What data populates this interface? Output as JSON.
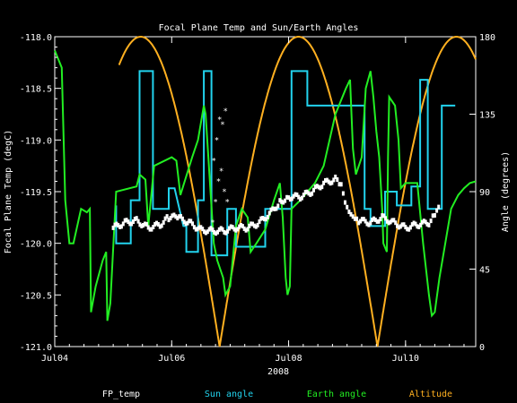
{
  "chart_data": {
    "type": "line",
    "title": "Focal Plane Temp and Sun/Earth Angles",
    "xlabel": "2008",
    "ylabel_left": "Focal Plane Temp (degC)",
    "ylabel_right": "Angle (degrees)",
    "ylim_left": [
      -121.0,
      -118.0
    ],
    "ylim_right": [
      0,
      180
    ],
    "xlim_days": [
      4.0,
      11.2
    ],
    "x_ticks": [
      {
        "day": 4,
        "label": "Jul04"
      },
      {
        "day": 6,
        "label": "Jul06"
      },
      {
        "day": 8,
        "label": "Jul08"
      },
      {
        "day": 10,
        "label": "Jul10"
      }
    ],
    "y_ticks_left": [
      "-118.0",
      "-118.5",
      "-119.0",
      "-119.5",
      "-120.0",
      "-120.5",
      "-121.0"
    ],
    "y_ticks_right": [
      "180",
      "135",
      "90",
      "45",
      "0"
    ],
    "legend": [
      "FP_temp",
      "Sun angle",
      "Earth angle",
      "Altitude"
    ],
    "colors": {
      "FP_temp": "#ffffff",
      "Sun angle": "#22d3ee",
      "Earth angle": "#22ee22",
      "Altitude": "#ffb020",
      "axes": "#ffffff",
      "background": "#000000"
    },
    "series": {
      "fp_temp": [
        [
          5.0,
          -119.85
        ],
        [
          5.2,
          -119.8
        ],
        [
          5.4,
          -119.78
        ],
        [
          5.6,
          -119.85
        ],
        [
          5.8,
          -119.82
        ],
        [
          5.95,
          -119.75
        ],
        [
          6.1,
          -119.75
        ],
        [
          6.3,
          -119.8
        ],
        [
          6.5,
          -119.87
        ],
        [
          6.7,
          -119.88
        ],
        [
          6.9,
          -119.88
        ],
        [
          7.1,
          -119.85
        ],
        [
          7.3,
          -119.85
        ],
        [
          7.5,
          -119.8
        ],
        [
          7.7,
          -119.7
        ],
        [
          7.85,
          -119.6
        ],
        [
          8.0,
          -119.55
        ],
        [
          8.2,
          -119.55
        ],
        [
          8.4,
          -119.5
        ],
        [
          8.6,
          -119.42
        ],
        [
          8.8,
          -119.38
        ],
        [
          8.9,
          -119.45
        ],
        [
          9.0,
          -119.65
        ],
        [
          9.1,
          -119.72
        ],
        [
          9.2,
          -119.78
        ],
        [
          9.4,
          -119.8
        ],
        [
          9.6,
          -119.75
        ],
        [
          9.8,
          -119.8
        ],
        [
          10.0,
          -119.85
        ],
        [
          10.2,
          -119.82
        ],
        [
          10.4,
          -119.8
        ],
        [
          10.5,
          -119.72
        ],
        [
          10.6,
          -119.65
        ]
      ],
      "fp_temp_spike": [
        [
          6.7,
          -119.8
        ],
        [
          6.72,
          -119.2
        ],
        [
          6.75,
          -119.6
        ],
        [
          6.77,
          -119.0
        ],
        [
          6.8,
          -119.4
        ],
        [
          6.82,
          -118.8
        ],
        [
          6.85,
          -119.3
        ],
        [
          6.87,
          -118.85
        ],
        [
          6.9,
          -119.5
        ],
        [
          6.92,
          -118.72
        ],
        [
          6.95,
          -119.6
        ]
      ],
      "sun_angle": [
        [
          5.05,
          82
        ],
        [
          5.05,
          60
        ],
        [
          5.3,
          60
        ],
        [
          5.3,
          85
        ],
        [
          5.45,
          85
        ],
        [
          5.45,
          160
        ],
        [
          5.68,
          160
        ],
        [
          5.68,
          80
        ],
        [
          5.95,
          80
        ],
        [
          5.95,
          92
        ],
        [
          6.05,
          92
        ],
        [
          6.2,
          70
        ],
        [
          6.25,
          70
        ],
        [
          6.25,
          55
        ],
        [
          6.45,
          55
        ],
        [
          6.45,
          85
        ],
        [
          6.55,
          85
        ],
        [
          6.55,
          160
        ],
        [
          6.68,
          160
        ],
        [
          6.68,
          53
        ],
        [
          6.95,
          53
        ],
        [
          6.95,
          80
        ],
        [
          7.1,
          80
        ],
        [
          7.1,
          58
        ],
        [
          7.6,
          58
        ],
        [
          7.6,
          80
        ],
        [
          8.05,
          80
        ],
        [
          8.05,
          160
        ],
        [
          8.32,
          160
        ],
        [
          8.32,
          140
        ],
        [
          8.65,
          140
        ],
        [
          8.65,
          140
        ],
        [
          9.05,
          140
        ],
        [
          9.05,
          140
        ],
        [
          9.3,
          140
        ],
        [
          9.3,
          80
        ],
        [
          9.4,
          80
        ],
        [
          9.4,
          70
        ],
        [
          9.65,
          70
        ],
        [
          9.65,
          90
        ],
        [
          9.85,
          90
        ],
        [
          9.85,
          82
        ],
        [
          10.1,
          82
        ],
        [
          10.1,
          93
        ],
        [
          10.25,
          93
        ],
        [
          10.25,
          155
        ],
        [
          10.38,
          155
        ],
        [
          10.38,
          80
        ],
        [
          10.62,
          80
        ],
        [
          10.62,
          140
        ],
        [
          10.85,
          140
        ]
      ],
      "earth_angle": [
        [
          4.0,
          172
        ],
        [
          4.12,
          162
        ],
        [
          4.18,
          85
        ],
        [
          4.25,
          60
        ],
        [
          4.32,
          60
        ],
        [
          4.45,
          80
        ],
        [
          4.55,
          78
        ],
        [
          4.6,
          80
        ],
        [
          4.62,
          20
        ],
        [
          4.7,
          35
        ],
        [
          4.82,
          50
        ],
        [
          4.88,
          55
        ],
        [
          4.9,
          15
        ],
        [
          4.95,
          25
        ],
        [
          5.05,
          90
        ],
        [
          5.4,
          93
        ],
        [
          5.45,
          100
        ],
        [
          5.45,
          100
        ],
        [
          5.55,
          97
        ],
        [
          5.6,
          70
        ],
        [
          5.7,
          105
        ],
        [
          6.0,
          110
        ],
        [
          6.08,
          108
        ],
        [
          6.15,
          88
        ],
        [
          6.35,
          110
        ],
        [
          6.45,
          120
        ],
        [
          6.55,
          140
        ],
        [
          6.58,
          135
        ],
        [
          6.72,
          60
        ],
        [
          6.78,
          50
        ],
        [
          6.88,
          40
        ],
        [
          6.92,
          30
        ],
        [
          7.0,
          35
        ],
        [
          7.1,
          70
        ],
        [
          7.2,
          80
        ],
        [
          7.3,
          75
        ],
        [
          7.35,
          55
        ],
        [
          7.45,
          60
        ],
        [
          7.6,
          68
        ],
        [
          7.75,
          85
        ],
        [
          7.85,
          95
        ],
        [
          7.9,
          75
        ],
        [
          7.95,
          40
        ],
        [
          7.98,
          30
        ],
        [
          8.02,
          35
        ],
        [
          8.05,
          80
        ],
        [
          8.2,
          85
        ],
        [
          8.45,
          95
        ],
        [
          8.6,
          105
        ],
        [
          8.8,
          135
        ],
        [
          8.98,
          150
        ],
        [
          9.05,
          155
        ],
        [
          9.1,
          115
        ],
        [
          9.15,
          100
        ],
        [
          9.25,
          110
        ],
        [
          9.32,
          150
        ],
        [
          9.4,
          160
        ],
        [
          9.45,
          145
        ],
        [
          9.5,
          125
        ],
        [
          9.55,
          110
        ],
        [
          9.6,
          80
        ],
        [
          9.62,
          60
        ],
        [
          9.68,
          55
        ],
        [
          9.7,
          110
        ],
        [
          9.72,
          145
        ],
        [
          9.82,
          140
        ],
        [
          9.88,
          120
        ],
        [
          9.92,
          92
        ],
        [
          10.0,
          95
        ],
        [
          10.15,
          95
        ],
        [
          10.2,
          95
        ],
        [
          10.3,
          60
        ],
        [
          10.4,
          30
        ],
        [
          10.45,
          18
        ],
        [
          10.5,
          20
        ],
        [
          10.58,
          40
        ],
        [
          10.68,
          60
        ],
        [
          10.78,
          80
        ],
        [
          10.9,
          88
        ],
        [
          11.0,
          92
        ],
        [
          11.1,
          95
        ],
        [
          11.2,
          96
        ]
      ],
      "altitude": {
        "start_day": 5.1,
        "end_day": 11.2,
        "min_days": [
          6.82,
          9.52
        ],
        "max": 180,
        "min": 0
      }
    }
  }
}
